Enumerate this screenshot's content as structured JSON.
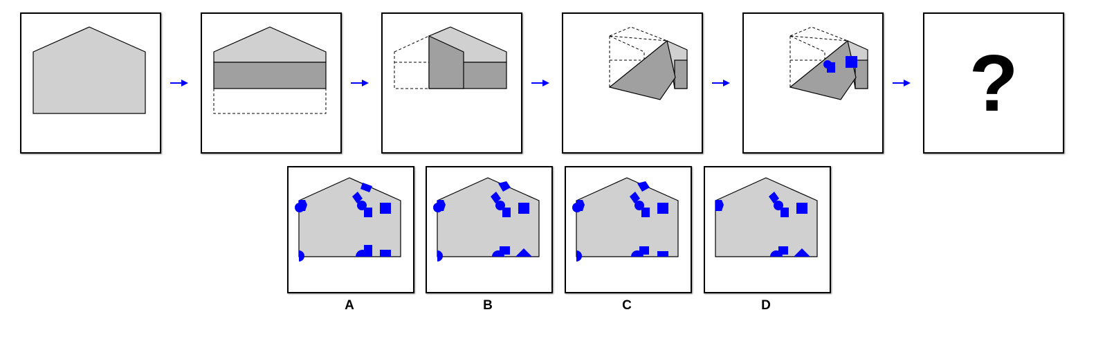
{
  "colors": {
    "paper": "#d0d0d0",
    "paper_folded": "#a0a0a0",
    "marks": "#0000ff",
    "arrow": "#0000ff",
    "outline": "#000000"
  },
  "sequence": {
    "steps": [
      {
        "step": 1,
        "content": "unfolded-paper"
      },
      {
        "step": 2,
        "content": "fold-bottom-up"
      },
      {
        "step": 3,
        "content": "fold-left-over"
      },
      {
        "step": 4,
        "content": "fold-diagonal"
      },
      {
        "step": 5,
        "content": "punch-holes"
      },
      {
        "step": 6,
        "content": "unknown"
      }
    ],
    "question_mark": "?"
  },
  "options": [
    {
      "label": "A"
    },
    {
      "label": "B"
    },
    {
      "label": "C"
    },
    {
      "label": "D"
    }
  ]
}
